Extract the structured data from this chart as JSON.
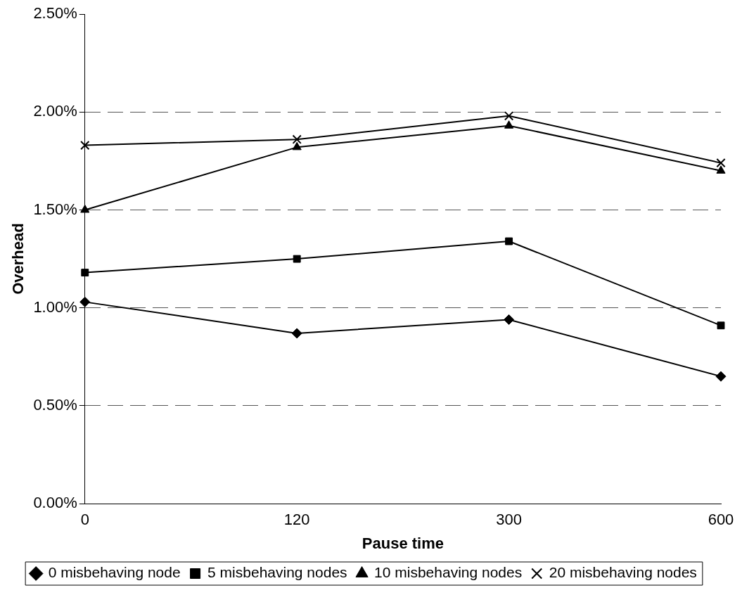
{
  "chart_data": {
    "type": "line",
    "xlabel": "Pause time",
    "ylabel": "Overhead",
    "categories": [
      "0",
      "120",
      "300",
      "600"
    ],
    "ylim": [
      0,
      2.5
    ],
    "yticks": [
      {
        "value": 0,
        "label": "0.00%"
      },
      {
        "value": 0.5,
        "label": "0.50%"
      },
      {
        "value": 1,
        "label": "1.00%"
      },
      {
        "value": 1.5,
        "label": "1.50%"
      },
      {
        "value": 2,
        "label": "2.00%"
      },
      {
        "value": 2.5,
        "label": "2.50%"
      }
    ],
    "grid": "y",
    "legend": "bottom",
    "line_style": "solid",
    "series": [
      {
        "name": "0 misbehaving node",
        "color": "#000000",
        "marker": "diamond",
        "values": [
          1.03,
          0.87,
          0.94,
          0.65
        ]
      },
      {
        "name": "5 misbehaving nodes",
        "color": "#000000",
        "marker": "square",
        "values": [
          1.18,
          1.25,
          1.34,
          0.91
        ]
      },
      {
        "name": "10 misbehaving nodes",
        "color": "#000000",
        "marker": "triangle",
        "values": [
          1.5,
          1.82,
          1.93,
          1.7
        ]
      },
      {
        "name": "20 misbehaving nodes",
        "color": "#000000",
        "marker": "cross",
        "values": [
          1.83,
          1.86,
          1.98,
          1.74
        ]
      }
    ]
  }
}
